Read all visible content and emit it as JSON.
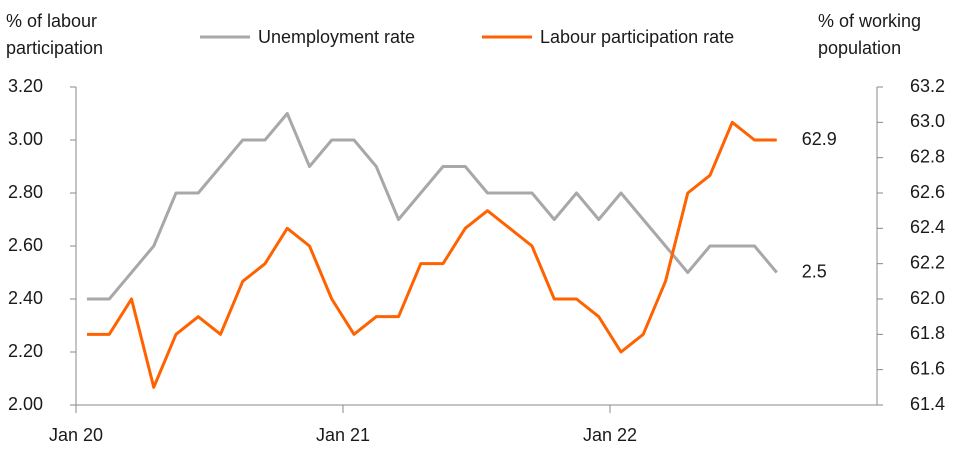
{
  "chart_data": {
    "type": "line",
    "y_label": "% of labour participation",
    "y2_label": "% of working population",
    "categories": [
      "Jan 20",
      null,
      null,
      null,
      null,
      null,
      null,
      null,
      null,
      null,
      null,
      null,
      "Jan 21",
      null,
      null,
      null,
      null,
      null,
      null,
      null,
      null,
      null,
      null,
      null,
      "Jan 22",
      null,
      null,
      null,
      null,
      null,
      null,
      null
    ],
    "series": [
      {
        "name": "Unemployment rate",
        "color": "#a8a8a8",
        "axis": "y",
        "values": [
          2.4,
          2.4,
          2.5,
          2.6,
          2.8,
          2.8,
          2.9,
          3.0,
          3.0,
          3.1,
          2.9,
          3.0,
          3.0,
          2.9,
          2.7,
          2.8,
          2.9,
          2.9,
          2.8,
          2.8,
          2.8,
          2.7,
          2.8,
          2.7,
          2.8,
          2.7,
          2.6,
          2.5,
          2.6,
          2.6,
          2.6,
          2.5
        ]
      },
      {
        "name": "Labour participation rate",
        "color": "#ff6200",
        "axis": "y2",
        "values": [
          61.8,
          61.8,
          62.0,
          61.5,
          61.8,
          61.9,
          61.8,
          62.1,
          62.2,
          62.4,
          62.3,
          62.0,
          61.8,
          61.9,
          61.9,
          62.2,
          62.2,
          62.4,
          62.5,
          62.4,
          62.3,
          62.0,
          62.0,
          61.9,
          61.7,
          61.8,
          62.1,
          62.6,
          62.7,
          63.0,
          62.9,
          62.9
        ]
      }
    ],
    "ylim": [
      2.0,
      3.2
    ],
    "yticks": [
      {
        "value": 2.0,
        "label": "2.00"
      },
      {
        "value": 2.2,
        "label": "2.20"
      },
      {
        "value": 2.4,
        "label": "2.40"
      },
      {
        "value": 2.6,
        "label": "2.60"
      },
      {
        "value": 2.8,
        "label": "2.80"
      },
      {
        "value": 3.0,
        "label": "3.00"
      },
      {
        "value": 3.2,
        "label": "3.20"
      }
    ],
    "y2lim": [
      61.4,
      63.2
    ],
    "y2ticks": [
      {
        "value": 61.4,
        "label": "61.4"
      },
      {
        "value": 61.6,
        "label": "61.6"
      },
      {
        "value": 61.8,
        "label": "61.8"
      },
      {
        "value": 62.0,
        "label": "62.0"
      },
      {
        "value": 62.2,
        "label": "62.2"
      },
      {
        "value": 62.4,
        "label": "62.4"
      },
      {
        "value": 62.6,
        "label": "62.6"
      },
      {
        "value": 62.8,
        "label": "62.8"
      },
      {
        "value": 63.0,
        "label": "63.0"
      },
      {
        "value": 63.2,
        "label": "63.2"
      }
    ],
    "grid": false,
    "legend": "top"
  }
}
